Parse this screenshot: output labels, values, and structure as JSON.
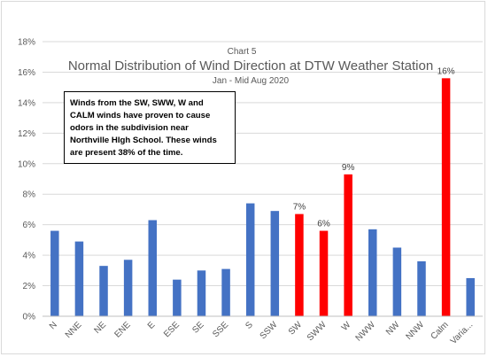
{
  "chart_data": {
    "type": "bar",
    "title_small": "Chart 5",
    "title": "Normal Distribution of Wind Direction at DTW Weather Station",
    "subtitle": "Jan - Mid Aug 2020",
    "categories": [
      "N",
      "NNE",
      "NE",
      "ENE",
      "E",
      "ESE",
      "SE",
      "SSE",
      "S",
      "SSW",
      "SW",
      "SWW",
      "W",
      "NWW",
      "NW",
      "NNW",
      "Calm",
      "Varia..."
    ],
    "values": [
      5.6,
      4.9,
      3.3,
      3.7,
      6.3,
      2.4,
      3.0,
      3.1,
      7.4,
      6.9,
      6.7,
      5.6,
      9.3,
      5.7,
      4.5,
      3.6,
      15.6,
      2.5
    ],
    "highlight": [
      false,
      false,
      false,
      false,
      false,
      false,
      false,
      false,
      false,
      false,
      true,
      true,
      true,
      false,
      false,
      false,
      true,
      false
    ],
    "data_labels": {
      "SW": "7%",
      "SWW": "6%",
      "W": "9%",
      "Calm": "16%"
    },
    "yticks": [
      "0%",
      "2%",
      "4%",
      "6%",
      "8%",
      "10%",
      "12%",
      "14%",
      "16%",
      "18%"
    ],
    "ylim": [
      0,
      18
    ],
    "grid": true,
    "colors": {
      "base": "#4472c4",
      "highlight": "#ff0000",
      "grid": "#d9d9d9"
    },
    "annotation": "Winds from the SW, SWW, W and CALM winds have proven to cause odors in the subdivision near Northville HIgh School. These winds are present 38% of the time."
  }
}
